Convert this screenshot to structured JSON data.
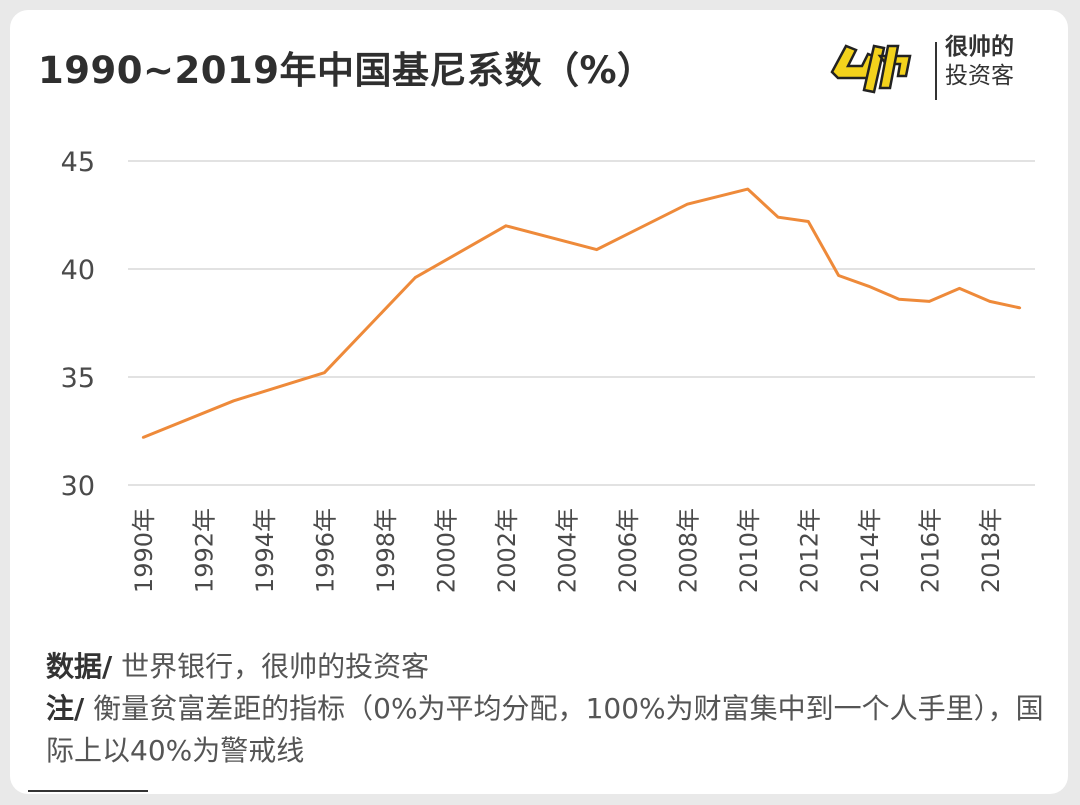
{
  "title": "1990~2019年中国基尼系数（%）",
  "brand": {
    "logo_text": "帅",
    "line1": "很帅的",
    "line2": "投资客"
  },
  "notes": {
    "source_label": "数据/",
    "source_text": "世界银行，很帅的投资客",
    "note_label": "注/",
    "note_text": "衡量贫富差距的指标（0%为平均分配，100%为财富集中到一个人手里），国际上以40%为警戒线"
  },
  "colors": {
    "line": "#ee8a3a",
    "grid": "#d9d9d9",
    "logo": "#f3d21c"
  },
  "chart_data": {
    "type": "line",
    "title": "1990~2019年中国基尼系数（%）",
    "xlabel": "",
    "ylabel": "",
    "ylim": [
      30,
      45
    ],
    "yticks": [
      30,
      35,
      40,
      45
    ],
    "grid": true,
    "tick_labels": [
      "1990年",
      "1992年",
      "1994年",
      "1996年",
      "1998年",
      "2000年",
      "2002年",
      "2004年",
      "2006年",
      "2008年",
      "2010年",
      "2012年",
      "2014年",
      "2016年",
      "2018年"
    ],
    "x": [
      1990,
      1993,
      1996,
      1999,
      2002,
      2005,
      2008,
      2010,
      2011,
      2012,
      2013,
      2014,
      2015,
      2016,
      2017,
      2018,
      2019
    ],
    "series": [
      {
        "values": [
          32.2,
          33.9,
          35.2,
          39.6,
          42.0,
          40.9,
          43.0,
          43.7,
          42.4,
          42.2,
          39.7,
          39.2,
          38.6,
          38.5,
          39.1,
          38.5,
          38.2
        ]
      }
    ]
  }
}
